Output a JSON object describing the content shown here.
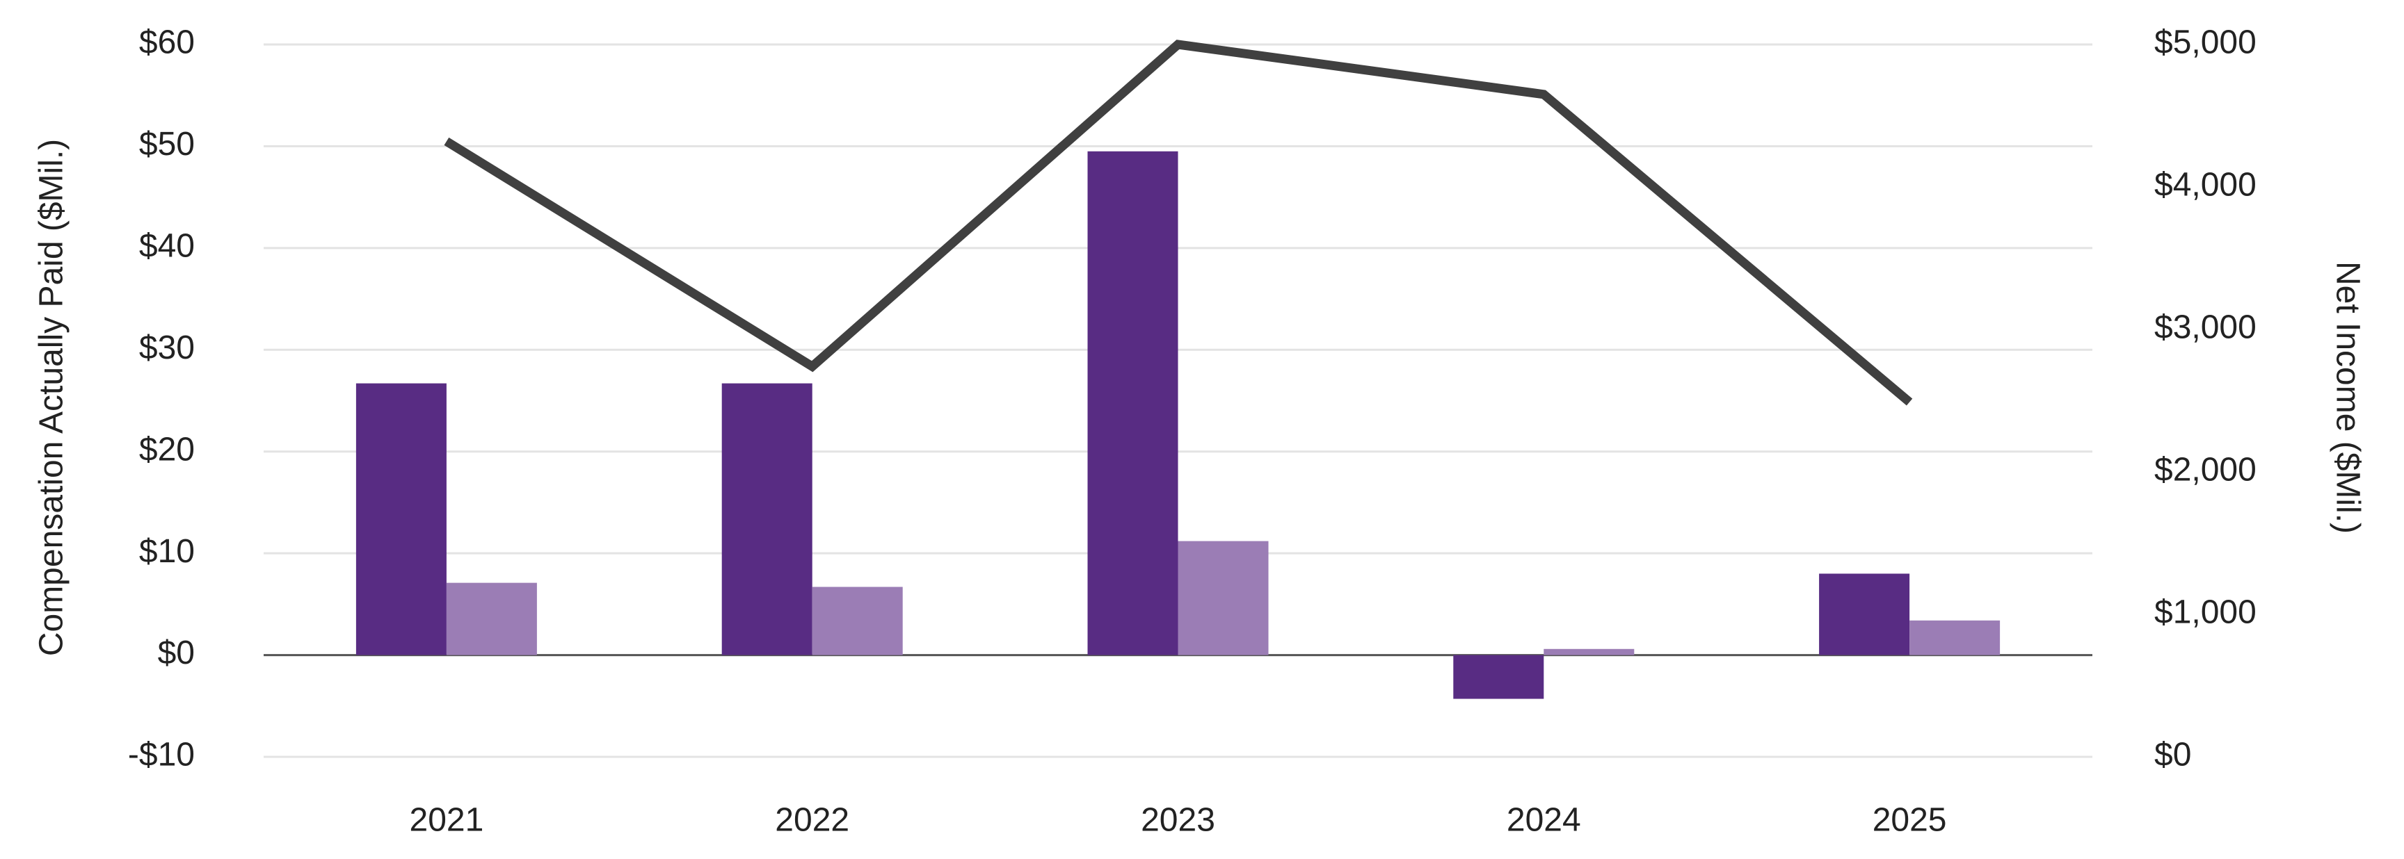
{
  "chart_data": {
    "type": "bar",
    "categories": [
      "2021",
      "2022",
      "2023",
      "2024",
      "2025"
    ],
    "y_label": "Compensation Actually Paid ($Mil.)",
    "y2_label": "Net Income ($Mil.)",
    "series": [
      {
        "color": "#582c83",
        "values": [
          26.7,
          26.7,
          49.5,
          -4.3,
          8.0
        ]
      },
      {
        "color": "#9b7db5",
        "values": [
          7.1,
          6.7,
          11.2,
          0.6,
          3.4
        ]
      },
      {
        "type": "line",
        "axis": "y2",
        "color": "#404040",
        "values": [
          4320,
          2740,
          5000,
          4650,
          2490
        ]
      }
    ],
    "ylim": [
      -10,
      60
    ],
    "yticks": [
      {
        "value": -10,
        "label": "-$10"
      },
      {
        "value": 0,
        "label": "$0"
      },
      {
        "value": 10,
        "label": "$10"
      },
      {
        "value": 20,
        "label": "$20"
      },
      {
        "value": 30,
        "label": "$30"
      },
      {
        "value": 40,
        "label": "$40"
      },
      {
        "value": 50,
        "label": "$50"
      },
      {
        "value": 60,
        "label": "$60"
      }
    ],
    "y2lim": [
      0,
      5000
    ],
    "y2ticks": [
      {
        "value": 0,
        "label": "$0"
      },
      {
        "value": 1000,
        "label": "$1,000"
      },
      {
        "value": 2000,
        "label": "$2,000"
      },
      {
        "value": 3000,
        "label": "$3,000"
      },
      {
        "value": 4000,
        "label": "$4,000"
      },
      {
        "value": 5000,
        "label": "$5,000"
      }
    ],
    "grid": true
  }
}
